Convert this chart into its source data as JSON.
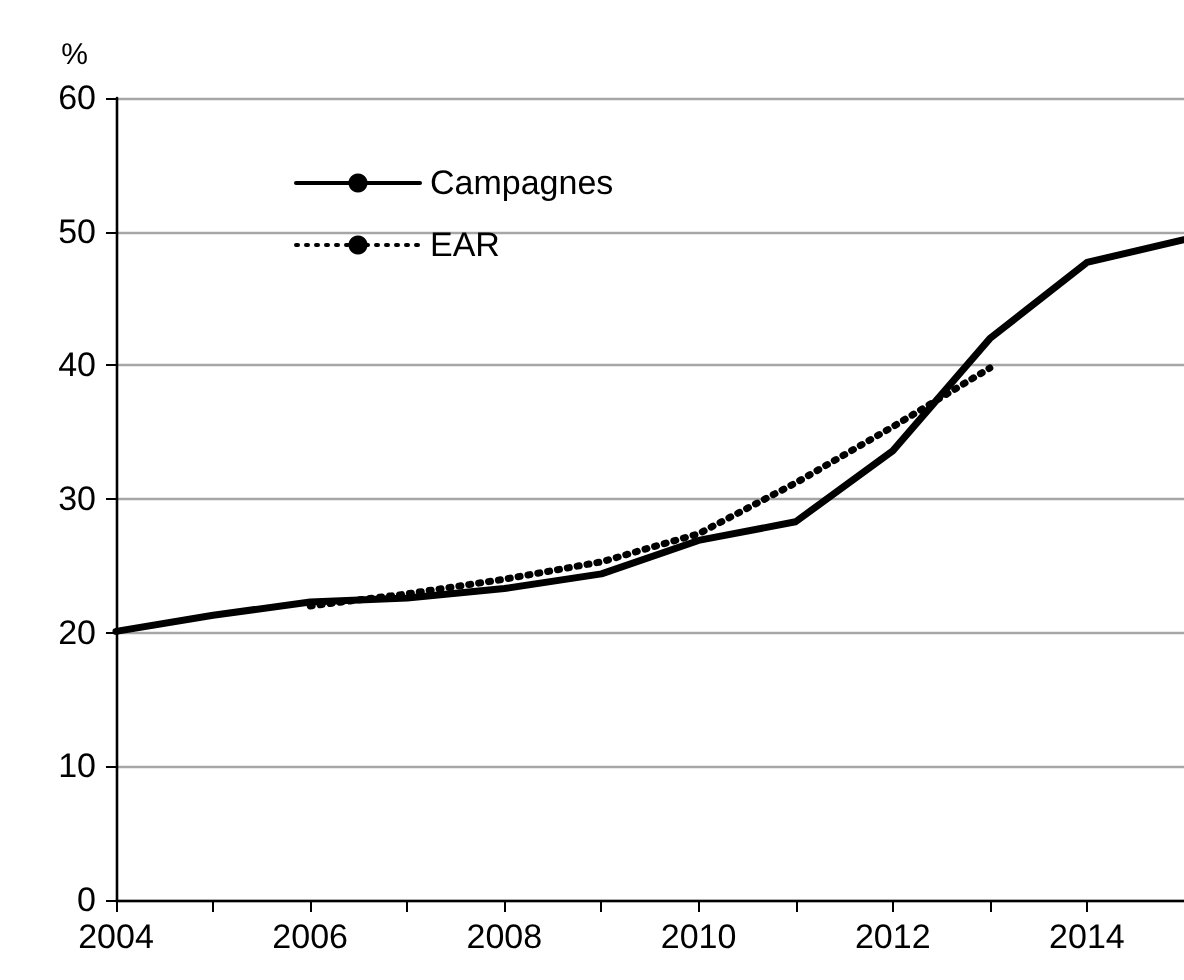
{
  "chart_data": {
    "type": "line",
    "ylabel": "%",
    "x": [
      2004,
      2005,
      2006,
      2007,
      2008,
      2009,
      2010,
      2011,
      2012,
      2013,
      2014,
      2015
    ],
    "series": [
      {
        "name": "Campagnes",
        "color": "#000000",
        "line_style": "solid",
        "values": [
          20.1,
          21.3,
          22.3,
          22.6,
          23.3,
          24.4,
          26.9,
          28.3,
          33.6,
          42.0,
          47.7,
          49.4
        ]
      },
      {
        "name": "EAR",
        "color": "#000000",
        "line_style": "dotted",
        "values": [
          null,
          null,
          22.0,
          22.9,
          24.0,
          25.3,
          27.4,
          31.2,
          35.4,
          39.8,
          null,
          null
        ]
      }
    ],
    "xlim": [
      2004,
      2015
    ],
    "xticks": [
      2004,
      {
        "value": 2005,
        "label": null
      },
      2006,
      {
        "value": 2007,
        "label": null
      },
      2008,
      {
        "value": 2009,
        "label": null
      },
      2010,
      {
        "value": 2011,
        "label": null
      },
      2012,
      {
        "value": 2013,
        "label": null
      },
      2014
    ],
    "ylim": [
      0,
      60
    ],
    "yticks": [
      0,
      10,
      20,
      30,
      40,
      50,
      60
    ],
    "grid": "y",
    "legend": "top left",
    "marker": "none"
  }
}
